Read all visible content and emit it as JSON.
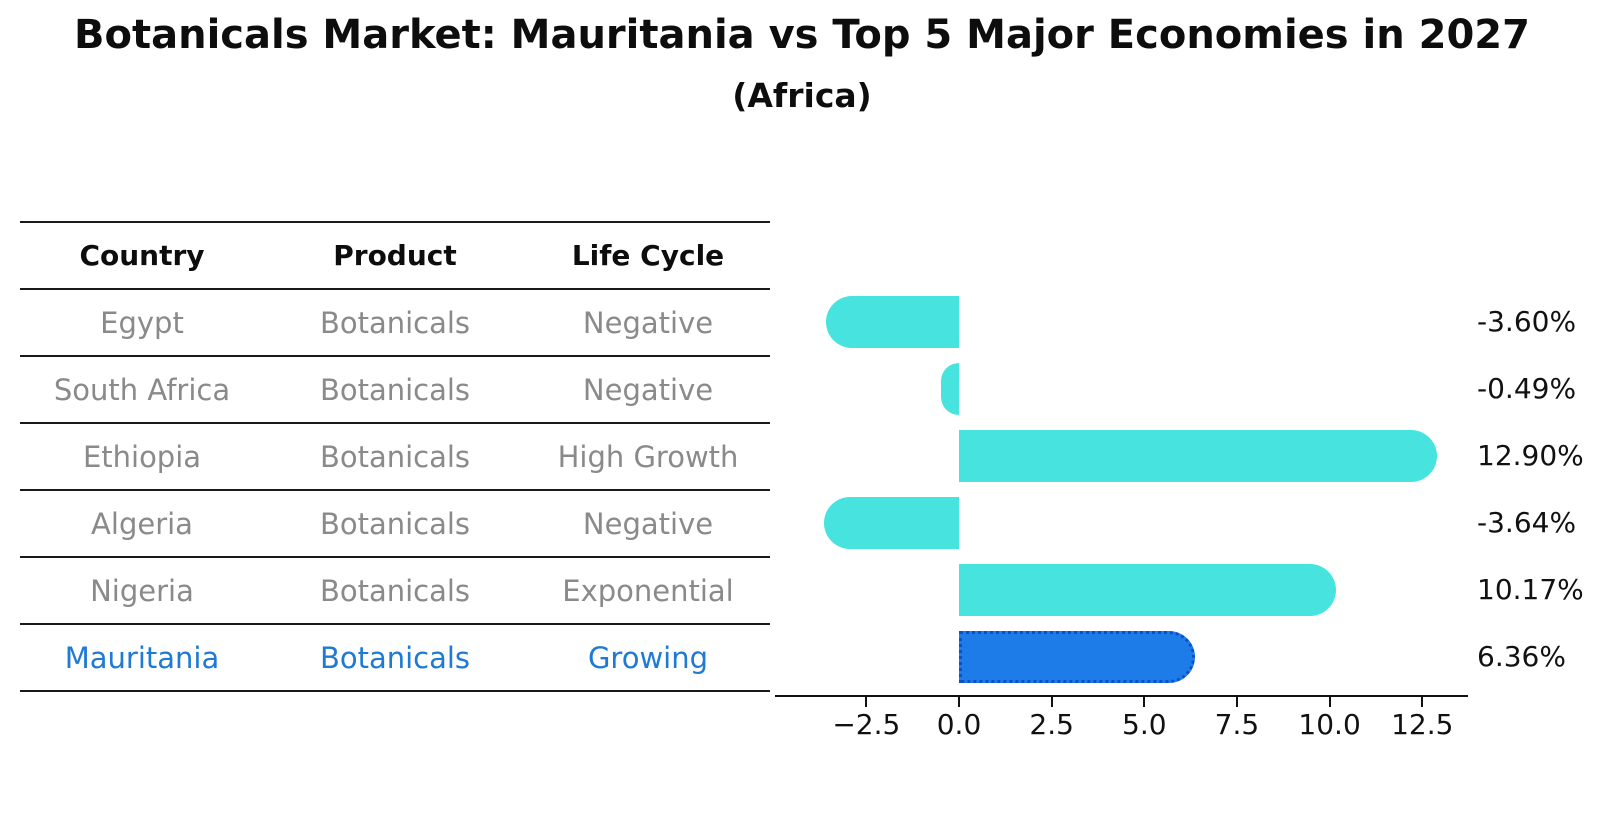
{
  "title": "Botanicals Market: Mauritania vs Top 5 Major Economies in 2027",
  "subtitle": "(Africa)",
  "table": {
    "headers": [
      "Country",
      "Product",
      "Life Cycle"
    ],
    "rows": [
      {
        "country": "Egypt",
        "product": "Botanicals",
        "life_cycle": "Negative",
        "highlight": false
      },
      {
        "country": "South Africa",
        "product": "Botanicals",
        "life_cycle": "Negative",
        "highlight": false
      },
      {
        "country": "Ethiopia",
        "product": "Botanicals",
        "life_cycle": "High Growth",
        "highlight": false
      },
      {
        "country": "Algeria",
        "product": "Botanicals",
        "life_cycle": "Negative",
        "highlight": false
      },
      {
        "country": "Nigeria",
        "product": "Botanicals",
        "life_cycle": "Exponential",
        "highlight": false
      },
      {
        "country": "Mauritania",
        "product": "Botanicals",
        "life_cycle": "Growing",
        "highlight": true
      }
    ]
  },
  "chart_data": {
    "type": "bar",
    "orientation": "horizontal",
    "categories": [
      "Egypt",
      "South Africa",
      "Ethiopia",
      "Algeria",
      "Nigeria",
      "Mauritania"
    ],
    "values": [
      -3.6,
      -0.49,
      12.9,
      -3.64,
      10.17,
      6.36
    ],
    "value_labels": [
      "-3.60%",
      "-0.49%",
      "12.90%",
      "-3.64%",
      "10.17%",
      "6.36%"
    ],
    "x_ticks": [
      -2.5,
      0.0,
      2.5,
      5.0,
      7.5,
      10.0,
      12.5
    ],
    "x_tick_labels": [
      "−2.5",
      "0.0",
      "2.5",
      "5.0",
      "7.5",
      "10.0",
      "12.5"
    ],
    "xlim": [
      -5.0,
      13.75
    ],
    "title": "Botanicals Market: Mauritania vs Top 5 Major Economies in 2027 (Africa)",
    "xlabel": "",
    "ylabel": "",
    "grid": false,
    "legend": false,
    "bar_color": "#46E3DF",
    "highlight_bar_color": "#1E7CE8",
    "highlight_edge_color": "#0A50C8",
    "highlight_index": 5
  },
  "colors": {
    "text_primary": "#0d0d0d",
    "text_muted": "#8a8a8a",
    "highlight_text": "#1e7ad2",
    "rule": "#1a1a1a"
  }
}
